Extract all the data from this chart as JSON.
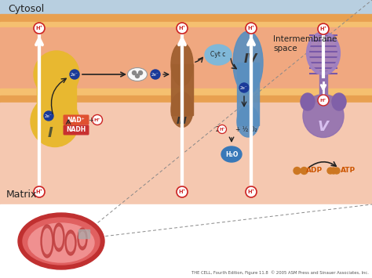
{
  "bg_white": "#ffffff",
  "cytosol_color": "#b8cfe0",
  "outer_membrane_top": "#e8a050",
  "outer_membrane_bot": "#f5c070",
  "intermembrane_color": "#f0a880",
  "inner_membrane_top": "#f5c070",
  "inner_membrane_bot": "#e8a050",
  "matrix_color": "#f5c8b0",
  "cytosol_label": "Cytosol",
  "intermembrane_label": "Intermembrane\nspace",
  "matrix_label": "Matrix",
  "caption": "THE CELL, Fourth Edition, Figure 11.8  © 2005 ASM Press and Sinauer Associates, Inc.",
  "complex_I_color": "#e8b830",
  "complex_III_color": "#a06030",
  "complex_IV_color": "#5a8fc0",
  "complex_V_upper_color": "#a080c0",
  "complex_V_lower_color": "#9070b0",
  "cytc_color": "#80b8d8",
  "h2o_color": "#3878b8",
  "nadh_color": "#c83030",
  "nad_color": "#e05030",
  "h_text_color": "#cc2222",
  "electron_color": "#1a3a99",
  "adp_color": "#cc5500",
  "atp_color": "#cc5500",
  "arrow_white": "#ffffff",
  "arrow_black": "#222222"
}
